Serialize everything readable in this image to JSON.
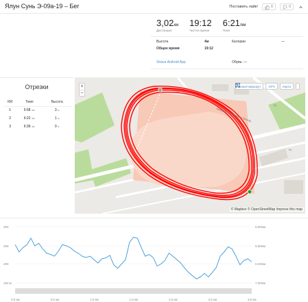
{
  "header": {
    "title": "Ялун Сунь Э-09а-19 – Бег",
    "like_label": "Поставить лайк!",
    "kudos_count": "0",
    "comments_count": "0"
  },
  "stats": {
    "distance": {
      "value": "3,02",
      "unit": "км",
      "label": "Дистанция"
    },
    "moving_time": {
      "value": "19:12",
      "label": "Чистое время"
    },
    "pace": {
      "value": "6:21",
      "unit": "/км",
      "label": "Темп"
    },
    "elevation_label": "Высота",
    "elevation_value": "4м",
    "calories_label": "Калории",
    "calories_value": "—",
    "elapsed_label": "Общее время",
    "elapsed_value": "19:12",
    "device": "Strava Android App",
    "shoes_label": "Обувь: —"
  },
  "splits": {
    "title": "Отрезки",
    "headers": [
      "КМ",
      "Темп",
      "Высота"
    ],
    "rows": [
      {
        "km": "1",
        "pace": "5:58",
        "pace_unit": "/км",
        "elev": "3",
        "elev_unit": "м"
      },
      {
        "km": "2",
        "pace": "6:22",
        "pace_unit": "/км",
        "elev": "1",
        "elev_unit": "м"
      },
      {
        "km": "3",
        "pace": "6:39",
        "pace_unit": "/км",
        "elev": "0",
        "elev_unit": "м"
      }
    ]
  },
  "map": {
    "zoom_in": "+",
    "zoom_out": "−",
    "new_route": "Новый маршрут",
    "gpx": "GPX",
    "map_type": "Карта",
    "attribution": "© Mapbox © OpenStreetMap Improve this map",
    "street_1": "Авиаконструкторская проезд",
    "street_2": "ул.",
    "street_3": "ул."
  },
  "chart_data": {
    "type": "line",
    "xlabel": "",
    "ylabel": "",
    "x_ticks": [
      "0,0 км",
      "0,5 км",
      "1,0 км",
      "1,5 км",
      "2,0 км",
      "2,5 км",
      "3,0 км"
    ],
    "y_left_ticks": [
      "300",
      "250",
      "200",
      "150 м"
    ],
    "y_right_ticks": [
      "5:00/км",
      "5:50/км",
      "6:40/км",
      "7:30/км"
    ],
    "xlim": [
      0,
      3.0
    ],
    "pace_ylim_seconds": [
      300,
      450
    ],
    "series": [
      {
        "x": [
          0.0,
          0.05,
          0.1,
          0.15,
          0.2,
          0.25,
          0.3,
          0.35,
          0.4,
          0.45,
          0.5,
          0.55,
          0.6,
          0.65,
          0.7,
          0.75,
          0.8,
          0.85,
          0.9,
          0.95,
          1.0,
          1.05,
          1.1,
          1.15,
          1.2,
          1.25,
          1.3,
          1.35,
          1.4,
          1.45,
          1.5,
          1.55,
          1.6,
          1.65,
          1.7,
          1.75,
          1.8,
          1.85,
          1.9,
          1.95,
          2.0,
          2.05,
          2.1,
          2.15,
          2.2,
          2.25,
          2.3,
          2.35,
          2.4,
          2.45,
          2.5,
          2.55,
          2.6,
          2.65,
          2.7,
          2.75,
          2.8,
          2.85,
          2.9,
          2.95,
          3.0
        ],
        "y": [
          345,
          362,
          352,
          345,
          330,
          348,
          342,
          355,
          365,
          368,
          372,
          360,
          345,
          348,
          352,
          360,
          365,
          372,
          375,
          372,
          380,
          388,
          378,
          376,
          370,
          392,
          400,
          390,
          380,
          340,
          328,
          330,
          352,
          372,
          368,
          375,
          395,
          390,
          382,
          365,
          372,
          380,
          388,
          400,
          410,
          418,
          425,
          420,
          412,
          420,
          410,
          398,
          372,
          362,
          350,
          355,
          372,
          392,
          382,
          378,
          385
        ]
      }
    ]
  },
  "colors": {
    "accent": "#fc4c02",
    "route": "#ff0000",
    "chart_line": "#3a96d8",
    "link": "#4a90c8"
  }
}
